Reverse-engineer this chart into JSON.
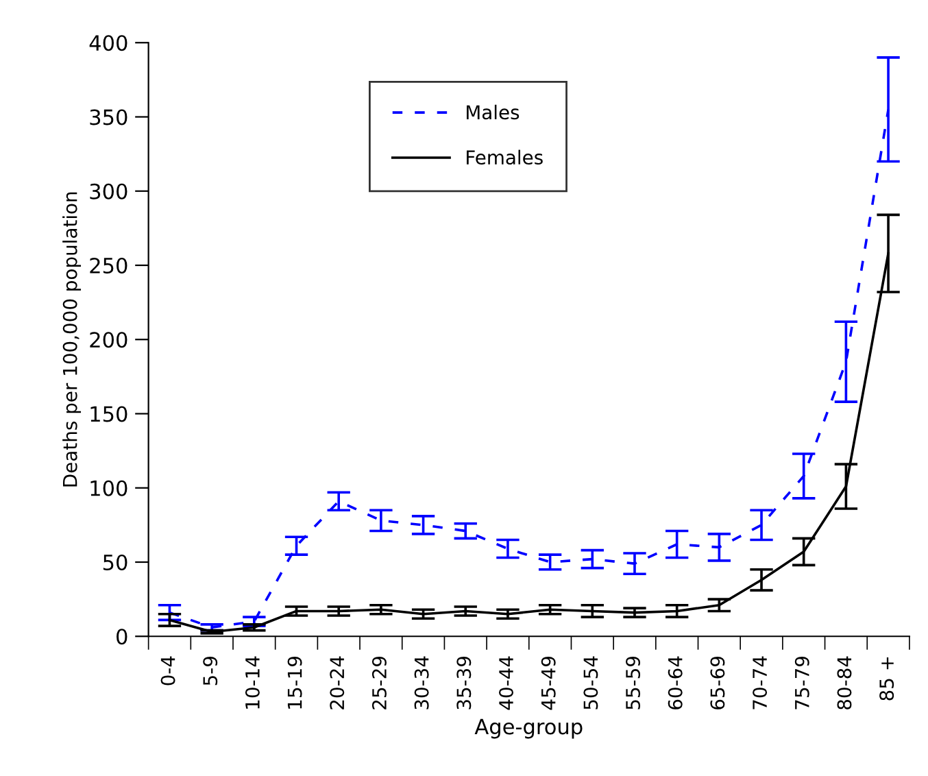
{
  "chart_data": {
    "type": "line",
    "xlabel": "Age-group",
    "ylabel": "Deaths per 100,000 population",
    "categories": [
      "0-4",
      "5-9",
      "10-14",
      "15-19",
      "20-24",
      "25-29",
      "30-34",
      "35-39",
      "40-44",
      "45-49",
      "50-54",
      "55-59",
      "60-64",
      "65-69",
      "70-74",
      "75-79",
      "80-84",
      "85 +"
    ],
    "series": [
      {
        "name": "Males",
        "color": "#0000ff",
        "line_style": "dashed",
        "values": [
          16,
          6,
          10,
          61,
          91,
          78,
          75,
          71,
          59,
          50,
          52,
          49,
          62,
          60,
          75,
          108,
          185,
          355
        ],
        "errors": [
          5,
          2,
          3,
          6,
          6,
          7,
          6,
          5,
          6,
          5,
          6,
          7,
          9,
          9,
          10,
          15,
          27,
          35
        ]
      },
      {
        "name": "Females",
        "color": "#000000",
        "line_style": "solid",
        "values": [
          11,
          3,
          6,
          17,
          17,
          18,
          15,
          17,
          15,
          18,
          17,
          16,
          17,
          21,
          38,
          57,
          101,
          258
        ],
        "errors": [
          4,
          1,
          2,
          3,
          3,
          3,
          3,
          3,
          3,
          3,
          4,
          3,
          4,
          4,
          7,
          9,
          15,
          26
        ]
      }
    ],
    "ylim": [
      0,
      400
    ],
    "yticks": [
      0,
      50,
      100,
      150,
      200,
      250,
      300,
      350,
      400
    ],
    "grid": false,
    "legend": "top",
    "marker": "none"
  }
}
